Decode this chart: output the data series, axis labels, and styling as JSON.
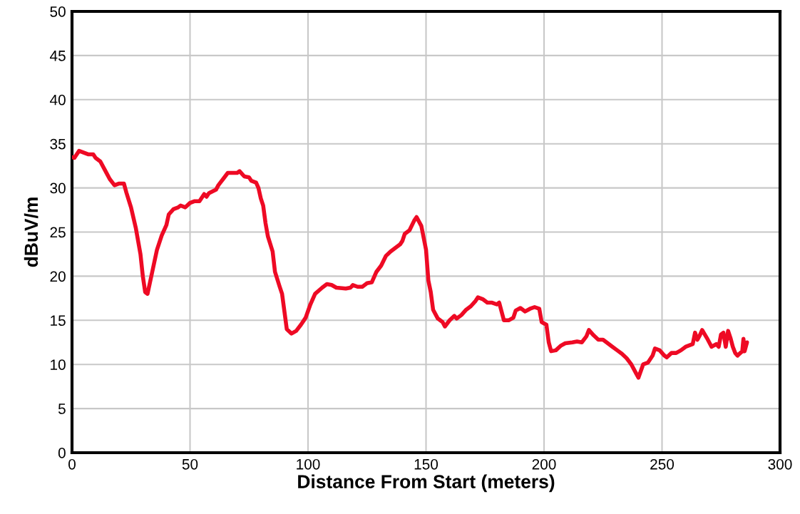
{
  "chart_data": {
    "type": "line",
    "xlabel": "Distance From Start (meters)",
    "ylabel": "dBuV/m",
    "xlim": [
      0,
      300
    ],
    "xticks": [
      0,
      50,
      100,
      150,
      200,
      250,
      300
    ],
    "ylim": [
      0,
      50
    ],
    "yticks": [
      0,
      5,
      10,
      15,
      20,
      25,
      30,
      35,
      40,
      45,
      50
    ],
    "grid": true,
    "marker": "none",
    "line_style": "solid",
    "series": [
      {
        "color": "#ee0a24",
        "x": [
          0,
          1,
          2,
          3,
          5,
          7,
          9,
          10,
          12,
          14,
          16,
          18,
          20,
          22,
          23,
          25,
          27,
          29,
          30,
          31,
          32,
          34,
          36,
          38,
          40,
          41,
          43,
          45,
          46,
          48,
          50,
          52,
          54,
          56,
          57,
          58,
          61,
          62,
          64,
          66,
          70,
          71,
          73,
          75,
          76,
          78,
          79,
          80,
          81,
          82,
          83,
          85,
          86,
          88,
          89,
          90,
          91,
          93,
          95,
          97,
          99,
          101,
          103,
          106,
          108,
          110,
          112,
          116,
          118,
          119,
          121,
          123,
          125,
          127,
          129,
          131,
          133,
          135,
          137,
          139,
          140,
          141,
          143,
          145,
          146,
          148,
          150,
          151,
          152,
          153,
          155,
          157,
          158,
          160,
          162,
          163,
          165,
          167,
          169,
          171,
          172,
          174,
          176,
          178,
          180,
          181,
          183,
          185,
          187,
          188,
          190,
          192,
          194,
          196,
          198,
          199,
          201,
          202,
          203,
          205,
          207,
          209,
          212,
          214,
          216,
          218,
          219,
          221,
          223,
          225,
          227,
          229,
          231,
          233,
          235,
          237,
          239,
          240,
          242,
          244,
          246,
          247,
          249,
          251,
          252,
          254,
          256,
          258,
          260,
          262,
          263,
          264,
          265,
          266,
          267,
          269,
          271,
          273,
          274,
          275,
          276,
          277,
          278,
          279,
          280,
          281,
          282,
          284,
          284.5,
          285,
          286
        ],
        "values": [
          33.5,
          33.4,
          33.8,
          34.2,
          34.0,
          33.8,
          33.8,
          33.4,
          33.0,
          32.0,
          31.0,
          30.3,
          30.5,
          30.5,
          29.5,
          27.8,
          25.5,
          22.5,
          20,
          18.2,
          18.0,
          20.5,
          23.0,
          24.6,
          25.8,
          27.0,
          27.6,
          27.8,
          28.0,
          27.8,
          28.3,
          28.5,
          28.5,
          29.3,
          29.0,
          29.4,
          29.8,
          30.3,
          31.0,
          31.7,
          31.7,
          31.9,
          31.3,
          31.2,
          30.8,
          30.6,
          30.0,
          28.8,
          28.0,
          26.0,
          24.5,
          22.8,
          20.5,
          18.8,
          18.0,
          16.0,
          14.0,
          13.5,
          13.8,
          14.5,
          15.3,
          16.8,
          18.0,
          18.7,
          19.1,
          19.0,
          18.7,
          18.6,
          18.7,
          19.0,
          18.8,
          18.8,
          19.2,
          19.3,
          20.5,
          21.2,
          22.3,
          22.8,
          23.2,
          23.6,
          24.0,
          24.8,
          25.2,
          26.3,
          26.7,
          25.7,
          23.0,
          19.5,
          18.2,
          16.2,
          15.2,
          14.8,
          14.3,
          15.0,
          15.5,
          15.2,
          15.6,
          16.2,
          16.6,
          17.2,
          17.6,
          17.4,
          17.0,
          17.0,
          16.8,
          17.0,
          15.0,
          15.0,
          15.3,
          16.1,
          16.4,
          16.0,
          16.3,
          16.5,
          16.3,
          14.8,
          14.5,
          12.5,
          11.5,
          11.6,
          12.1,
          12.4,
          12.5,
          12.6,
          12.5,
          13.2,
          13.9,
          13.3,
          12.8,
          12.8,
          12.4,
          12.0,
          11.6,
          11.2,
          10.7,
          10.0,
          9.0,
          8.5,
          10.0,
          10.2,
          11.0,
          11.8,
          11.6,
          11.0,
          10.8,
          11.3,
          11.3,
          11.6,
          12.0,
          12.2,
          12.3,
          13.6,
          12.8,
          13.3,
          13.9,
          13.0,
          12.0,
          12.3,
          12.0,
          13.4,
          13.6,
          12.0,
          13.8,
          13.0,
          12.0,
          11.3,
          11.0,
          11.5,
          12.9,
          11.5,
          12.5
        ]
      }
    ]
  }
}
